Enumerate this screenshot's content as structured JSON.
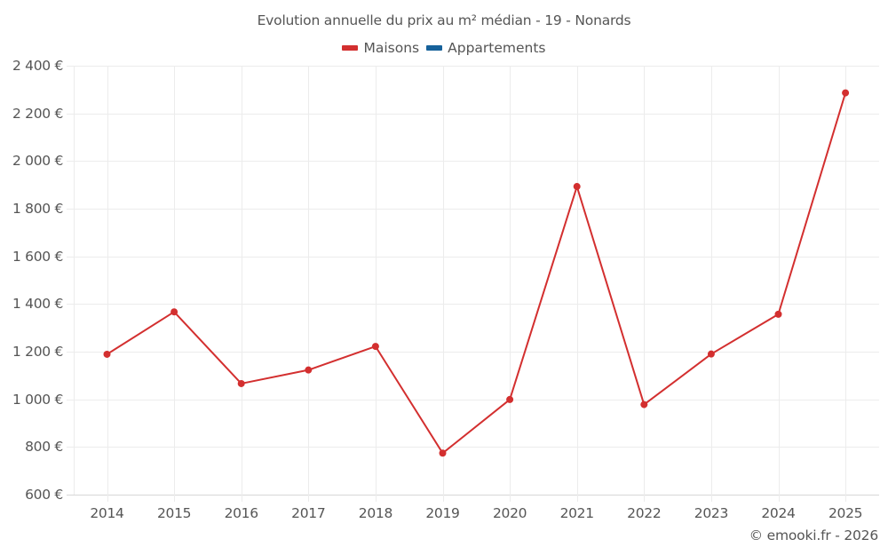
{
  "title": "Evolution annuelle du prix au m² médian - 19 - Nonards",
  "legend": [
    {
      "label": "Maisons",
      "color": "#d32f2f"
    },
    {
      "label": "Appartements",
      "color": "#16619a"
    }
  ],
  "credit": "© emooki.fr - 2026",
  "y_ticks": [
    "2 400 €",
    "2 200 €",
    "2 000 €",
    "1 800 €",
    "1 600 €",
    "1 400 €",
    "1 200 €",
    "1 000 €",
    "800 €",
    "600 €"
  ],
  "x_ticks": [
    "2014",
    "2015",
    "2016",
    "2017",
    "2018",
    "2019",
    "2020",
    "2021",
    "2022",
    "2023",
    "2024",
    "2025"
  ],
  "chart_data": {
    "type": "line",
    "title": "Evolution annuelle du prix au m² médian - 19 - Nonards",
    "xlabel": "",
    "ylabel": "",
    "categories": [
      "2014",
      "2015",
      "2016",
      "2017",
      "2018",
      "2019",
      "2020",
      "2021",
      "2022",
      "2023",
      "2024",
      "2025"
    ],
    "series": [
      {
        "name": "Maisons",
        "color": "#d32f2f",
        "values": [
          1189,
          1367,
          1066,
          1123,
          1222,
          774,
          999,
          1893,
          978,
          1190,
          1357,
          2286
        ]
      },
      {
        "name": "Appartements",
        "color": "#16619a",
        "values": []
      }
    ],
    "ylim": [
      600,
      2400
    ],
    "y_tick_step": 200,
    "grid": true,
    "legend_position": "top-center",
    "y_unit": "€"
  }
}
